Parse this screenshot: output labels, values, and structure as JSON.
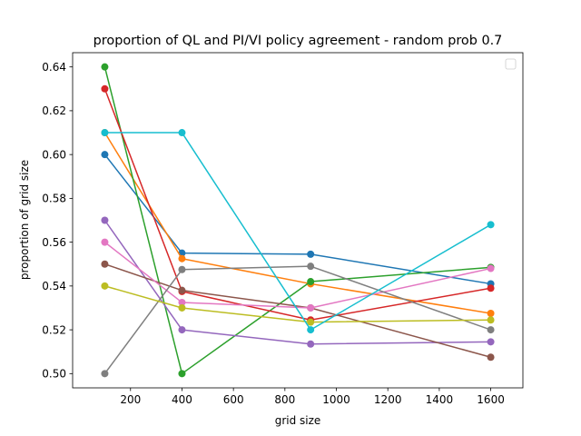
{
  "chart_data": {
    "type": "line",
    "title": "proportion of QL and PI/VI policy agreement - random prob 0.7",
    "xlabel": "grid size",
    "ylabel": "proportion of grid size",
    "x": [
      100,
      400,
      900,
      1600
    ],
    "xlim": [
      -25,
      1725
    ],
    "ylim": [
      0.4935,
      0.6465
    ],
    "xticks": [
      200,
      400,
      600,
      800,
      1000,
      1200,
      1400,
      1600
    ],
    "xtick_labels": [
      "200",
      "400",
      "600",
      "800",
      "1000",
      "1200",
      "1400",
      "1600"
    ],
    "yticks": [
      0.5,
      0.52,
      0.54,
      0.56,
      0.58,
      0.6,
      0.62,
      0.64
    ],
    "ytick_labels": [
      "0.50",
      "0.52",
      "0.54",
      "0.56",
      "0.58",
      "0.60",
      "0.62",
      "0.64"
    ],
    "grid": false,
    "legend": {
      "position": "top-right",
      "entries": []
    },
    "series": [
      {
        "color": "#1f77b4",
        "values": [
          0.6,
          0.555,
          0.5545,
          0.541
        ]
      },
      {
        "color": "#ff7f0e",
        "values": [
          0.61,
          0.5525,
          0.541,
          0.5275
        ]
      },
      {
        "color": "#2ca02c",
        "values": [
          0.64,
          0.5,
          0.542,
          0.5485
        ]
      },
      {
        "color": "#d62728",
        "values": [
          0.63,
          0.5375,
          0.5245,
          0.539
        ]
      },
      {
        "color": "#9467bd",
        "values": [
          0.57,
          0.52,
          0.5135,
          0.5145
        ]
      },
      {
        "color": "#8c564b",
        "values": [
          0.55,
          0.538,
          0.53,
          0.5075
        ]
      },
      {
        "color": "#e377c2",
        "values": [
          0.56,
          0.5325,
          0.53,
          0.548
        ]
      },
      {
        "color": "#7f7f7f",
        "values": [
          0.5,
          0.5475,
          0.549,
          0.52
        ]
      },
      {
        "color": "#bcbd22",
        "values": [
          0.54,
          0.53,
          0.5235,
          0.5245
        ]
      },
      {
        "color": "#17becf",
        "values": [
          0.61,
          0.61,
          0.52,
          0.568
        ]
      }
    ]
  }
}
